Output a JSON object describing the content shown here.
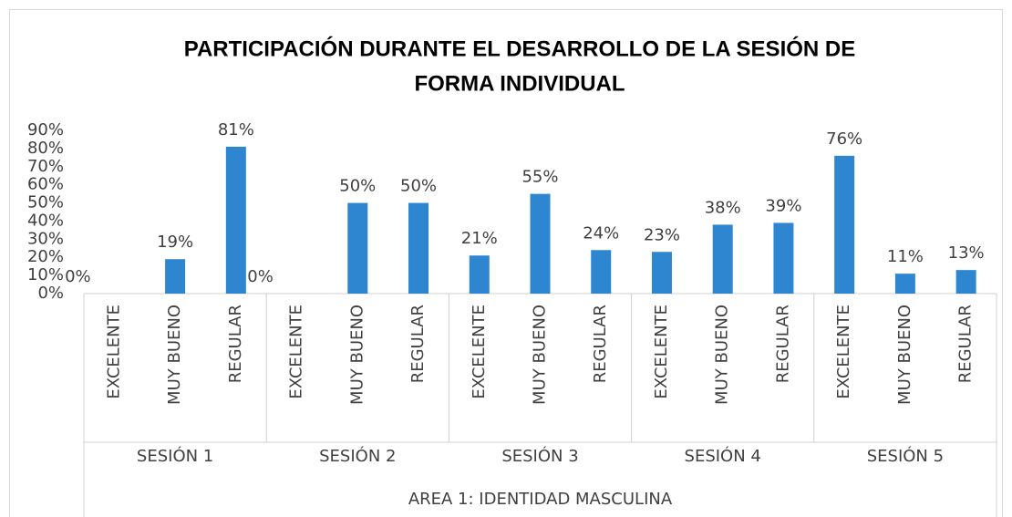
{
  "chart_data": {
    "type": "bar",
    "title": [
      "PARTICIPACIÓN DURANTE EL DESARROLLO DE LA SESIÓN DE",
      "FORMA INDIVIDUAL"
    ],
    "categories": [
      "EXCELENTE",
      "MUY BUENO",
      "REGULAR",
      "EXCELENTE",
      "MUY BUENO",
      "REGULAR",
      "EXCELENTE",
      "MUY BUENO",
      "REGULAR",
      "EXCELENTE",
      "MUY BUENO",
      "REGULAR",
      "EXCELENTE",
      "MUY BUENO",
      "REGULAR"
    ],
    "groups": [
      "SESIÓN 1",
      "SESIÓN 2",
      "SESIÓN 3",
      "SESIÓN 4",
      "SESIÓN 5"
    ],
    "xlabel": "AREA 1: IDENTIDAD MASCULINA",
    "values": [
      0,
      19,
      81,
      0,
      50,
      50,
      21,
      55,
      24,
      23,
      38,
      39,
      76,
      11,
      13
    ],
    "value_labels": [
      "0%",
      "19%",
      "81%",
      "0%",
      "50%",
      "50%",
      "21%",
      "55%",
      "24%",
      "23%",
      "38%",
      "39%",
      "76%",
      "11%",
      "13%"
    ],
    "color": "#2e86d0",
    "ylim": [
      0,
      90
    ],
    "yticks": [
      {
        "value": 0,
        "label": "0%"
      },
      {
        "value": 10,
        "label": "10%"
      },
      {
        "value": 20,
        "label": "20%"
      },
      {
        "value": 30,
        "label": "30%"
      },
      {
        "value": 40,
        "label": "40%"
      },
      {
        "value": 50,
        "label": "50%"
      },
      {
        "value": 60,
        "label": "60%"
      },
      {
        "value": 70,
        "label": "70%"
      },
      {
        "value": 80,
        "label": "80%"
      },
      {
        "value": 90,
        "label": "90%"
      }
    ],
    "grid": false
  }
}
